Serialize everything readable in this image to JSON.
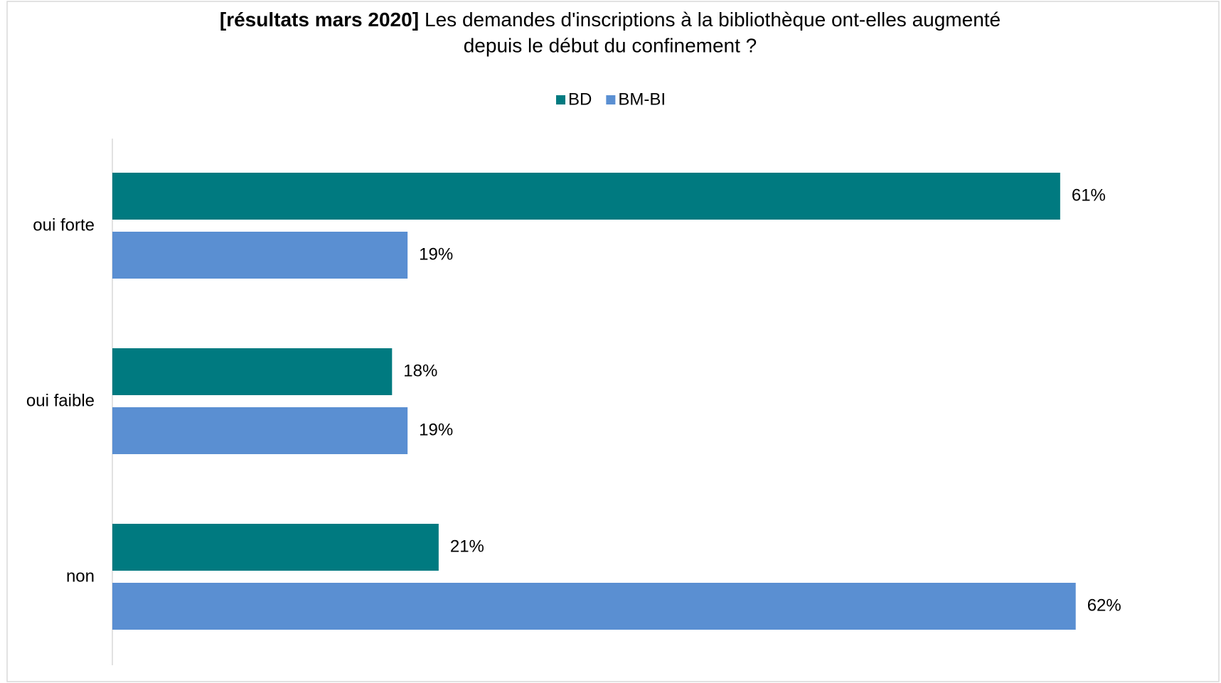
{
  "chart_data": {
    "type": "bar",
    "orientation": "horizontal",
    "title_bold": "[résultats mars 2020]",
    "title_lines": [
      "Les demandes d'inscriptions à la bibliothèque ont-elles augmenté",
      "depuis le début du confinement ?"
    ],
    "categories": [
      "oui forte",
      "oui faible",
      "non"
    ],
    "series": [
      {
        "name": "BD",
        "color": "#007a80",
        "values": [
          61,
          18,
          21
        ],
        "value_labels": [
          "61%",
          "18%",
          "21%"
        ]
      },
      {
        "name": "BM-BI",
        "color": "#5a8fd2",
        "values": [
          19,
          19,
          62
        ],
        "value_labels": [
          "19%",
          "19%",
          "62%"
        ]
      }
    ],
    "legend": "top"
  }
}
